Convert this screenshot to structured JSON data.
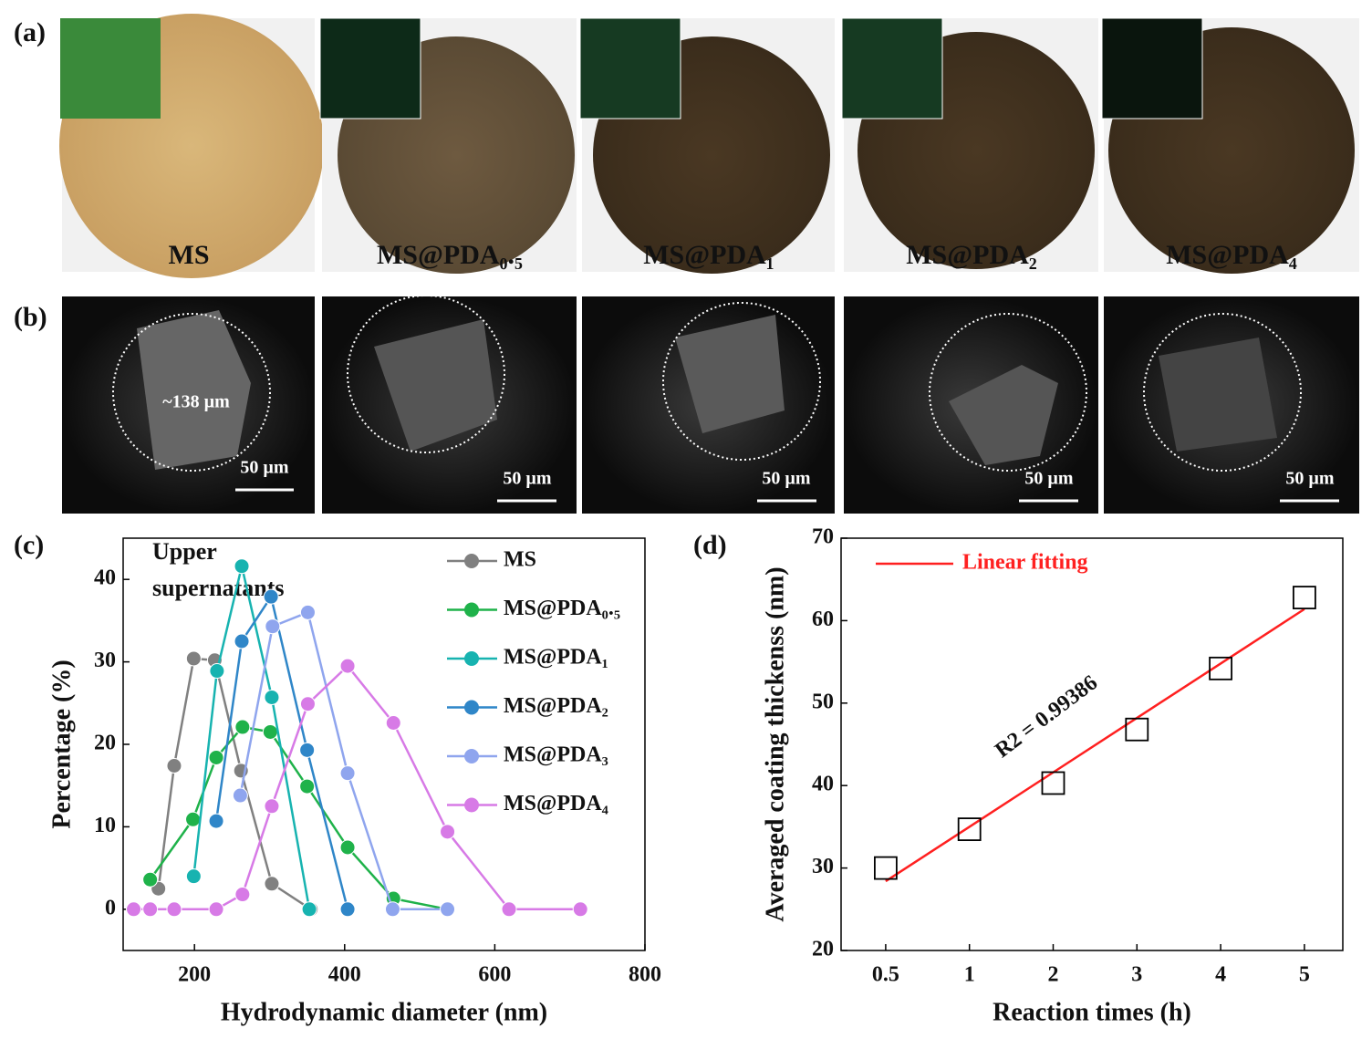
{
  "panel_labels": [
    "(a)",
    "(b)",
    "(c)",
    "(d)"
  ],
  "photos": [
    "MS",
    "MS@PDA₀.₅",
    "MS@PDA₁",
    "MS@PDA₂",
    "MS@PDA₄"
  ],
  "sem": {
    "scale_bar": "50 µm",
    "size_note": "~138 µm"
  },
  "chart_data": [
    {
      "type": "line",
      "xlabel": "Hydrodynamic diameter (nm)",
      "ylabel": "Percentage (%)",
      "annotation": [
        "Upper",
        "supernatants"
      ],
      "xlim": [
        105,
        800
      ],
      "xticks": [
        200,
        400,
        600,
        800
      ],
      "ylim": [
        -5,
        45
      ],
      "yticks": [
        0,
        10,
        20,
        30,
        40
      ],
      "series": [
        {
          "name": "MS",
          "color": "#808080",
          "x": [
            152,
            173,
            199,
            227,
            262,
            303,
            355
          ],
          "values": [
            2.5,
            17.4,
            30.4,
            30.2,
            16.8,
            3.1,
            0
          ]
        },
        {
          "name": "MS@PDA₀.₅",
          "color": "#1fb24a",
          "x": [
            141,
            198,
            229,
            264,
            301,
            350,
            404,
            465,
            537
          ],
          "values": [
            3.6,
            10.9,
            18.4,
            22.1,
            21.5,
            14.9,
            7.5,
            1.3,
            0
          ]
        },
        {
          "name": "MS@PDA₁",
          "color": "#17b3b0",
          "x": [
            199,
            230,
            263,
            303,
            353
          ],
          "values": [
            4,
            28.9,
            41.6,
            25.7,
            0
          ]
        },
        {
          "name": "MS@PDA₂",
          "color": "#2f86c8",
          "x": [
            229,
            263,
            302,
            350,
            404
          ],
          "values": [
            10.7,
            32.5,
            37.9,
            19.3,
            0
          ]
        },
        {
          "name": "MS@PDA₃",
          "color": "#8fa5ee",
          "x": [
            261,
            304,
            351,
            404,
            464,
            537
          ],
          "values": [
            13.8,
            34.3,
            36,
            16.5,
            0,
            0
          ]
        },
        {
          "name": "MS@PDA₄",
          "color": "#d77ae6",
          "x": [
            119,
            141,
            173,
            229,
            264,
            303,
            351,
            404,
            465,
            537,
            619,
            714
          ],
          "values": [
            0,
            0,
            0,
            0,
            1.8,
            12.5,
            24.9,
            29.5,
            22.6,
            9.4,
            0,
            0
          ]
        }
      ]
    },
    {
      "type": "scatter",
      "xlabel": "Reaction times (h)",
      "ylabel": "Averaged coating thickenss (nm)",
      "annotation": "R2 = 0.99386",
      "categories": [
        "0.5",
        "1",
        "2",
        "3",
        "4",
        "5"
      ],
      "values": [
        30,
        34.7,
        40.3,
        46.8,
        54.2,
        62.8
      ],
      "color": "#000000",
      "ylim": [
        20,
        70
      ],
      "yticks": [
        20,
        30,
        40,
        50,
        60,
        70
      ],
      "fit": {
        "name": "Linear fitting",
        "color": "#ff2020",
        "values": [
          28.4,
          35,
          41.6,
          48.2,
          54.8,
          61.4
        ]
      }
    }
  ]
}
